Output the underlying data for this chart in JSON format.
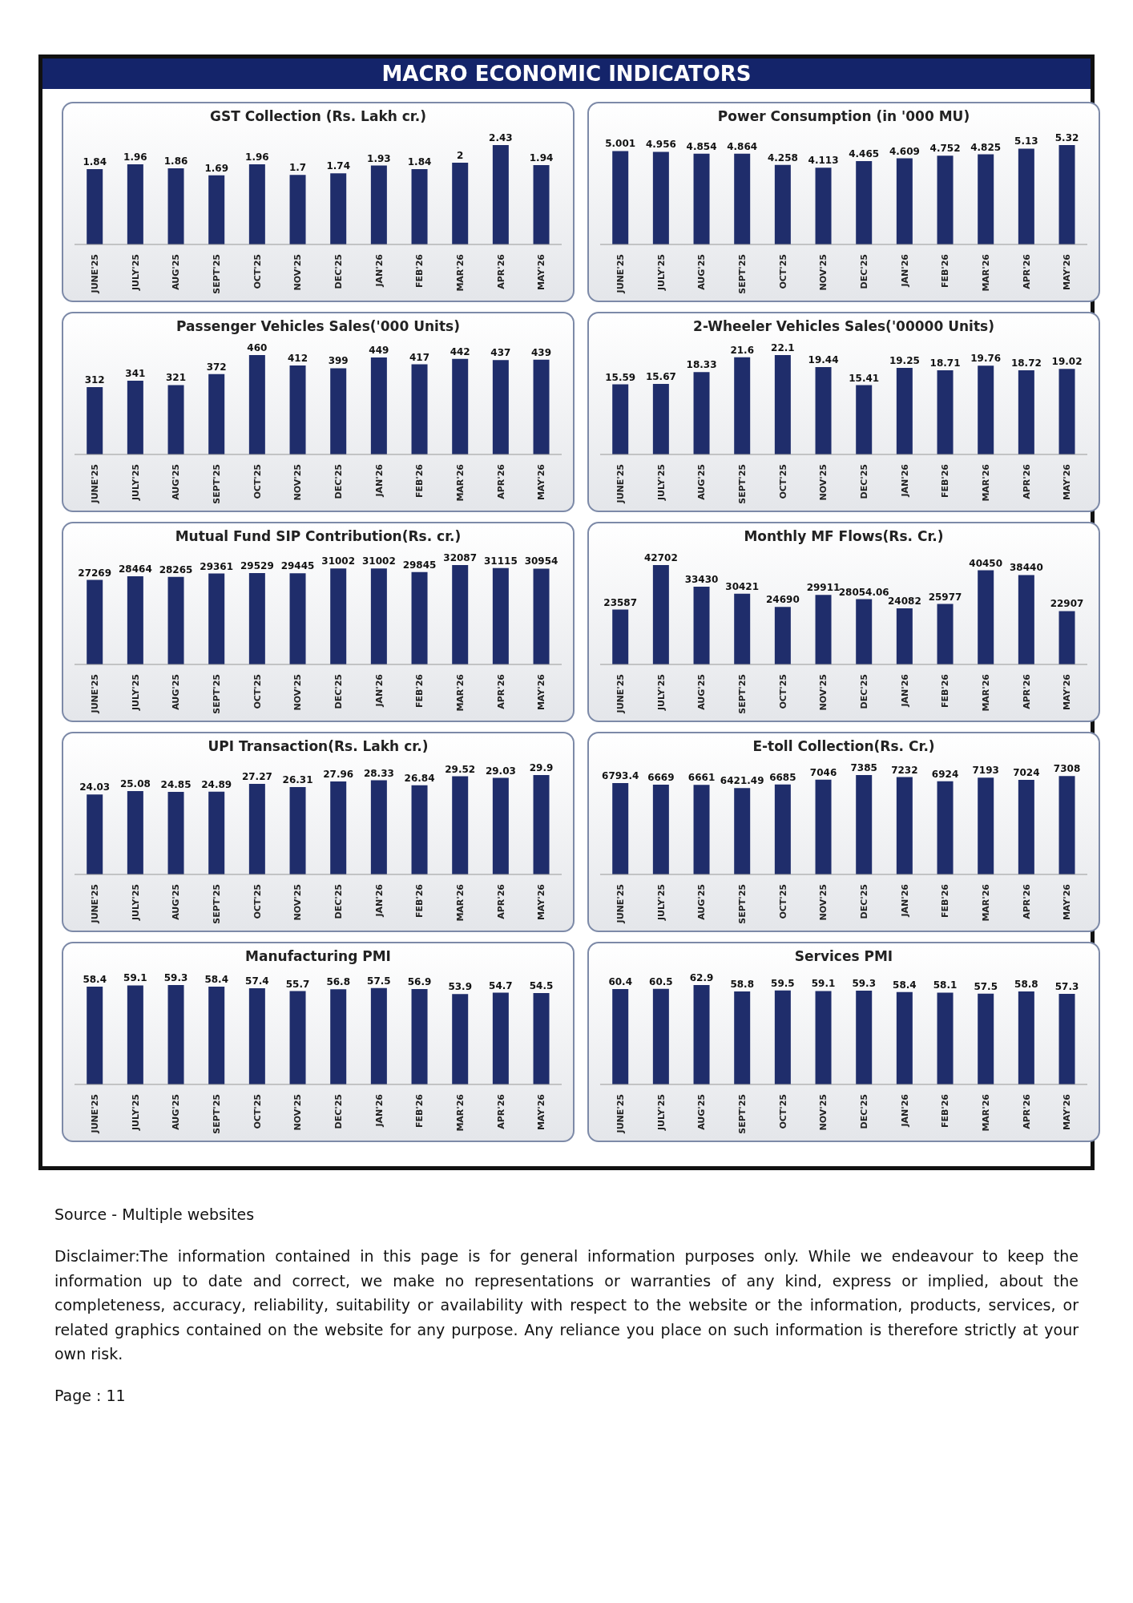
{
  "chart_data": [
    {
      "type": "other",
      "title": "MACRO ECONOMIC INDICATORS"
    },
    {
      "type": "bar",
      "title": "GST Collection (Rs. Lakh cr.)",
      "categories": [
        "JUNE'25",
        "JULY'25",
        "AUG'25",
        "SEPT'25",
        "OCT'25",
        "NOV'25",
        "DEC'25",
        "JAN'26",
        "FEB'26",
        "MAR'26",
        "APR'26",
        "MAY'26"
      ],
      "values": [
        1.84,
        1.96,
        1.86,
        1.69,
        1.96,
        1.7,
        1.74,
        1.93,
        1.84,
        2,
        2.43,
        1.94
      ],
      "color": "#1f2d6b",
      "data_labels": true
    },
    {
      "type": "bar",
      "title": "Power Consumption (in '000 MU)",
      "categories": [
        "JUNE'25",
        "JULY'25",
        "AUG'25",
        "SEPT'25",
        "OCT'25",
        "NOV'25",
        "DEC'25",
        "JAN'26",
        "FEB'26",
        "MAR'26",
        "APR'26",
        "MAY'26"
      ],
      "values": [
        5.001,
        4.956,
        4.854,
        4.864,
        4.258,
        4.113,
        4.465,
        4.609,
        4.752,
        4.825,
        5.13,
        5.32
      ],
      "color": "#1f2d6b",
      "data_labels": true
    },
    {
      "type": "bar",
      "title": "Passenger Vehicles Sales('000 Units)",
      "categories": [
        "JUNE'25",
        "JULY'25",
        "AUG'25",
        "SEPT'25",
        "OCT'25",
        "NOV'25",
        "DEC'25",
        "JAN'26",
        "FEB'26",
        "MAR'26",
        "APR'26",
        "MAY'26"
      ],
      "values": [
        312,
        341,
        321,
        372,
        460,
        412,
        399,
        449,
        417,
        442,
        437,
        439
      ],
      "color": "#1f2d6b",
      "data_labels": true
    },
    {
      "type": "bar",
      "title": "2-Wheeler Vehicles Sales('00000 Units)",
      "categories": [
        "JUNE'25",
        "JULY'25",
        "AUG'25",
        "SEPT'25",
        "OCT'25",
        "NOV'25",
        "DEC'25",
        "JAN'26",
        "FEB'26",
        "MAR'26",
        "APR'26",
        "MAY'26"
      ],
      "values": [
        15.59,
        15.67,
        18.33,
        21.6,
        22.1,
        19.44,
        15.41,
        19.25,
        18.71,
        19.76,
        18.72,
        19.02
      ],
      "color": "#1f2d6b",
      "data_labels": true
    },
    {
      "type": "bar",
      "title": "Mutual Fund SIP Contribution(Rs. cr.)",
      "categories": [
        "JUNE'25",
        "JULY'25",
        "AUG'25",
        "SEPT'25",
        "OCT'25",
        "NOV'25",
        "DEC'25",
        "JAN'26",
        "FEB'26",
        "MAR'26",
        "APR'26",
        "MAY'26"
      ],
      "values": [
        27269,
        28464,
        28265,
        29361,
        29529,
        29445,
        31002,
        31002,
        29845,
        32087,
        31115,
        30954
      ],
      "color": "#1f2d6b",
      "data_labels": true
    },
    {
      "type": "bar",
      "title": "Monthly MF Flows(Rs. Cr.)",
      "categories": [
        "JUNE'25",
        "JULY'25",
        "AUG'25",
        "SEPT'25",
        "OCT'25",
        "NOV'25",
        "DEC'25",
        "JAN'26",
        "FEB'26",
        "MAR'26",
        "APR'26",
        "MAY'26"
      ],
      "values": [
        23587,
        42702,
        33430,
        30421,
        24690,
        29911,
        28054.06,
        24082,
        25977,
        40450,
        38440,
        22907
      ],
      "color": "#1f2d6b",
      "data_labels": true
    },
    {
      "type": "bar",
      "title": "UPI Transaction(Rs. Lakh cr.)",
      "categories": [
        "JUNE'25",
        "JULY'25",
        "AUG'25",
        "SEPT'25",
        "OCT'25",
        "NOV'25",
        "DEC'25",
        "JAN'26",
        "FEB'26",
        "MAR'26",
        "APR'26",
        "MAY'26"
      ],
      "values": [
        24.03,
        25.08,
        24.85,
        24.89,
        27.27,
        26.31,
        27.96,
        28.33,
        26.84,
        29.52,
        29.03,
        29.9
      ],
      "color": "#1f2d6b",
      "data_labels": true
    },
    {
      "type": "bar",
      "title": "E-toll Collection(Rs. Cr.)",
      "categories": [
        "JUNE'25",
        "JULY'25",
        "AUG'25",
        "SEPT'25",
        "OCT'25",
        "NOV'25",
        "DEC'25",
        "JAN'26",
        "FEB'26",
        "MAR'26",
        "APR'26",
        "MAY'26"
      ],
      "values": [
        6793.4,
        6669,
        6661,
        6421.49,
        6685,
        7046,
        7385,
        7232,
        6924,
        7193,
        7024,
        7308
      ],
      "color": "#1f2d6b",
      "data_labels": true
    },
    {
      "type": "bar",
      "title": "Manufacturing PMI",
      "categories": [
        "JUNE'25",
        "JULY'25",
        "AUG'25",
        "SEPT'25",
        "OCT'25",
        "NOV'25",
        "DEC'25",
        "JAN'26",
        "FEB'26",
        "MAR'26",
        "APR'26",
        "MAY'26"
      ],
      "values": [
        58.4,
        59.1,
        59.3,
        58.4,
        57.4,
        55.7,
        56.8,
        57.5,
        56.9,
        53.9,
        54.7,
        54.5
      ],
      "color": "#1f2d6b",
      "data_labels": true
    },
    {
      "type": "bar",
      "title": "Services PMI",
      "categories": [
        "JUNE'25",
        "JULY'25",
        "AUG'25",
        "SEPT'25",
        "OCT'25",
        "NOV'25",
        "DEC'25",
        "JAN'26",
        "FEB'26",
        "MAR'26",
        "APR'26",
        "MAY'26"
      ],
      "values": [
        60.4,
        60.5,
        62.9,
        58.8,
        59.5,
        59.1,
        59.3,
        58.4,
        58.1,
        57.5,
        58.8,
        57.3
      ],
      "color": "#1f2d6b",
      "data_labels": true
    },
    {
      "type": "other",
      "annotations": [
        "Source - Multiple websites",
        "Disclaimer:The information contained in this page is for general information purposes only.  While we endeavour to keep the information up to date and correct, we make no representations or warranties of any kind, express or implied, about the completeness, accuracy, reliability, suitability or availability with respect to the website or the information, products, services, or related graphics contained on the website for any purpose. Any reliance you place on such information is therefore strictly at your own risk.",
        "Page : 11"
      ]
    }
  ]
}
